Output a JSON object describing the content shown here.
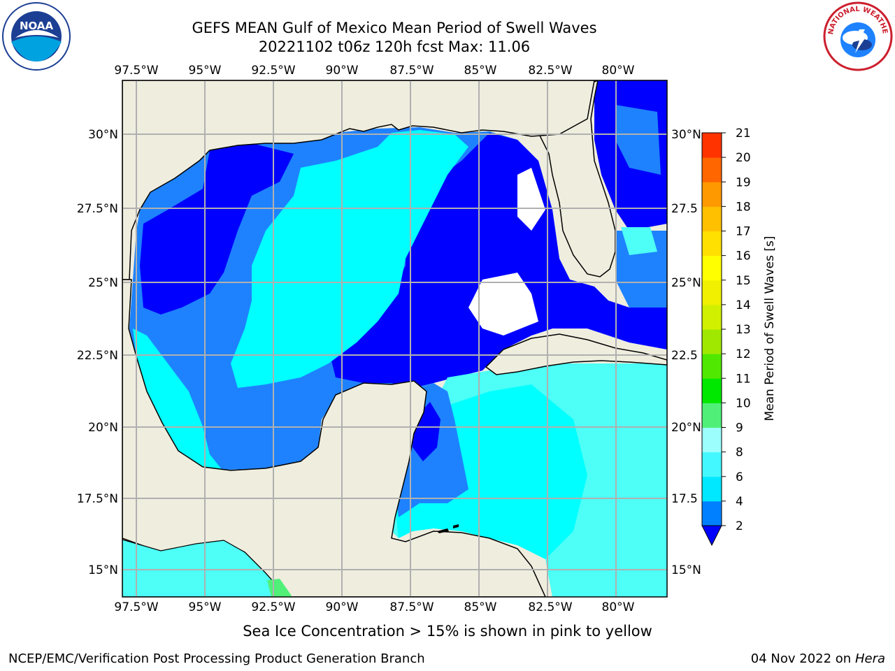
{
  "header": {
    "title_line1": "GEFS MEAN Gulf of Mexico Mean Period of Swell Waves",
    "title_line2": "20221102 t06z 120h fcst   Max: 11.06"
  },
  "logos": {
    "left": "NOAA",
    "right": "NATIONAL WEATHER SERVICE"
  },
  "map": {
    "lon_ticks": [
      "97.5°W",
      "95°W",
      "92.5°W",
      "90°W",
      "87.5°W",
      "85°W",
      "82.5°W",
      "80°W"
    ],
    "lat_ticks_left": [
      "30°N",
      "27.5°N",
      "25°N",
      "22.5°N",
      "20°N",
      "17.5°N",
      "15°N"
    ],
    "lat_ticks_right": [
      "30°N",
      "27.5",
      "25°N",
      "22.5",
      "20°N",
      "17.5",
      "15°N"
    ],
    "lon_range": [
      -98,
      -78.2
    ],
    "lat_range": [
      14,
      31.6
    ],
    "land_color": "#efedde",
    "ocean_colors": {
      "2-4": "#0000ff",
      "4-6": "#1e82ff",
      "6-8": "#00ffff",
      "8-9": "#4dfff6",
      "9-10": "#9cfffe"
    }
  },
  "colorbar": {
    "label": "Mean Period of Swell Waves [s]",
    "ticks": [
      "2",
      "4",
      "6",
      "8",
      "9",
      "10",
      "11",
      "12",
      "13",
      "14",
      "15",
      "16",
      "17",
      "18",
      "19",
      "20",
      "21"
    ],
    "colors": [
      "#0080ff",
      "#00e8ff",
      "#44f8ff",
      "#9cfffe",
      "#50f078",
      "#00e800",
      "#50e800",
      "#a0e800",
      "#d0f000",
      "#f0f000",
      "#ffff00",
      "#ffe000",
      "#ffc000",
      "#ff9900",
      "#ff6600",
      "#ff3300",
      "#ff0000"
    ],
    "extend_color": "#0000ff"
  },
  "footer": {
    "ice_note": "Sea Ice Concentration > 15% is shown in pink to yellow",
    "branch": "NCEP/EMC/Verification Post Processing Product Generation Branch",
    "date": "04 Nov 2022 on",
    "host": "Hera"
  }
}
